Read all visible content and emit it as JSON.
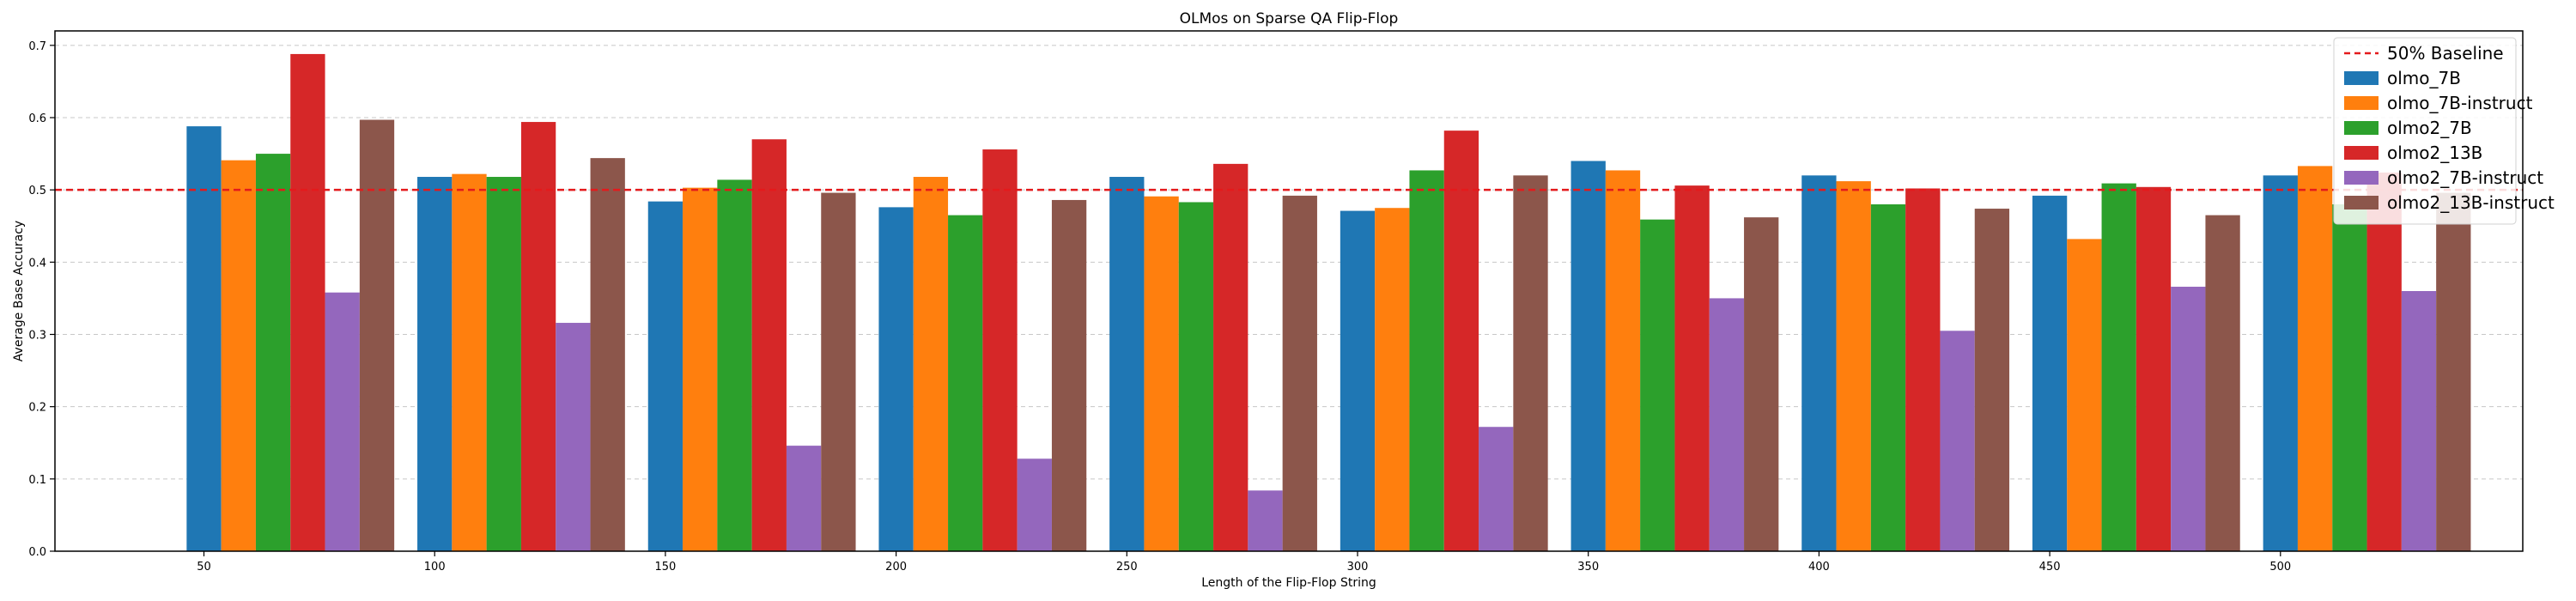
{
  "chart_data": {
    "type": "bar",
    "title": "OLMos on Sparse QA Flip-Flop",
    "xlabel": "Length of the Flip-Flop String",
    "ylabel": "Average Base Accuracy",
    "ylim": [
      0,
      0.72
    ],
    "yticks": [
      "0.0",
      "0.1",
      "0.2",
      "0.3",
      "0.4",
      "0.5",
      "0.6",
      "0.7"
    ],
    "grid": true,
    "legend_position": "top-right",
    "categories": [
      "50",
      "100",
      "150",
      "200",
      "250",
      "300",
      "350",
      "400",
      "450",
      "500"
    ],
    "baseline": {
      "name": "50% Baseline",
      "value": 0.5,
      "color": "#e41a1c"
    },
    "series": [
      {
        "name": "olmo_7B",
        "color": "#1f77b4",
        "values": [
          0.588,
          0.518,
          0.484,
          0.476,
          0.518,
          0.471,
          0.54,
          0.52,
          0.492,
          0.52
        ]
      },
      {
        "name": "olmo_7B-instruct",
        "color": "#ff7f0e",
        "values": [
          0.541,
          0.522,
          0.503,
          0.518,
          0.491,
          0.475,
          0.527,
          0.512,
          0.432,
          0.533
        ]
      },
      {
        "name": "olmo2_7B",
        "color": "#2ca02c",
        "values": [
          0.55,
          0.518,
          0.514,
          0.465,
          0.483,
          0.527,
          0.459,
          0.48,
          0.509,
          0.48
        ]
      },
      {
        "name": "olmo2_13B",
        "color": "#d62728",
        "values": [
          0.688,
          0.594,
          0.57,
          0.556,
          0.536,
          0.582,
          0.506,
          0.502,
          0.504,
          0.524
        ]
      },
      {
        "name": "olmo2_7B-instruct",
        "color": "#9467bd",
        "values": [
          0.358,
          0.316,
          0.146,
          0.128,
          0.084,
          0.172,
          0.35,
          0.305,
          0.366,
          0.36
        ]
      },
      {
        "name": "olmo2_13B-instruct",
        "color": "#8c564b",
        "values": [
          0.597,
          0.544,
          0.496,
          0.486,
          0.492,
          0.52,
          0.462,
          0.474,
          0.465,
          0.496
        ]
      }
    ]
  }
}
